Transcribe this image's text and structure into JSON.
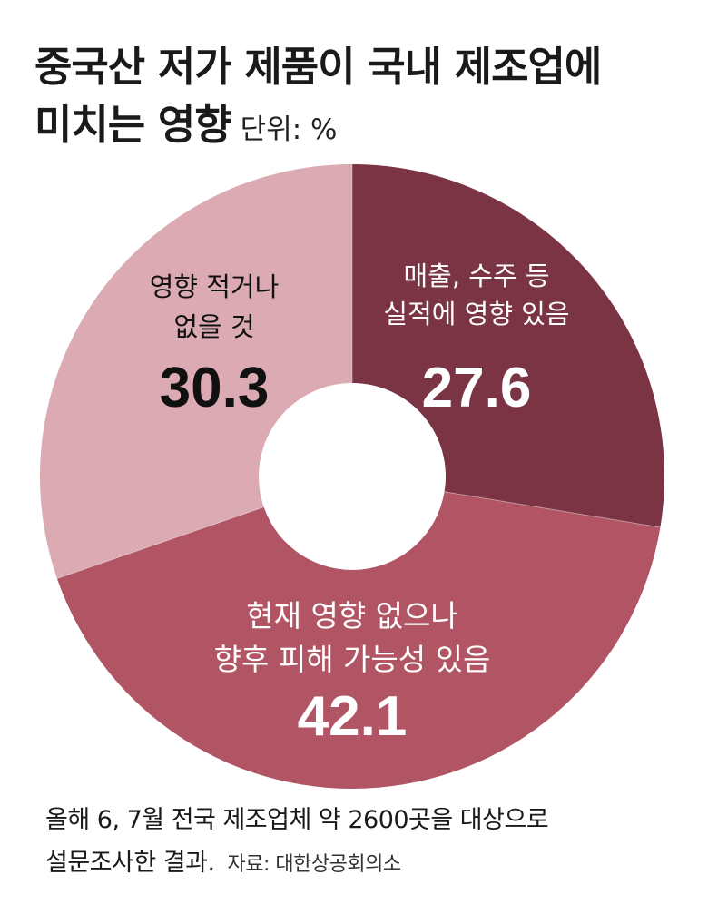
{
  "header": {
    "title_line1": "중국산 저가 제품이 국내 제조업에",
    "title_line2": "미치는 영향",
    "unit": "단위: %"
  },
  "chart_data": {
    "type": "pie",
    "style": "donut",
    "title": "중국산 저가 제품이 국내 제조업에 미치는 영향",
    "unit": "%",
    "slices": [
      {
        "label_lines": [
          "매출, 수주 등",
          "실적에 영향 있음"
        ],
        "value": 27.6,
        "value_text": "27.6",
        "color": "#7a3444",
        "text_color": "#ffffff"
      },
      {
        "label_lines": [
          "현재 영향 없으나",
          "향후 피해 가능성 있음"
        ],
        "value": 42.1,
        "value_text": "42.1",
        "color": "#b15565",
        "text_color": "#ffffff"
      },
      {
        "label_lines": [
          "영향 적거나",
          "없을 것"
        ],
        "value": 30.3,
        "value_text": "30.3",
        "color": "#dbaab3",
        "text_color": "#111111"
      }
    ]
  },
  "footer": {
    "note_line1": "올해 6, 7월 전국 제조업체 약 2600곳을 대상으로",
    "note_line2": "설문조사한 결과.",
    "source": "자료: 대한상공회의소"
  }
}
